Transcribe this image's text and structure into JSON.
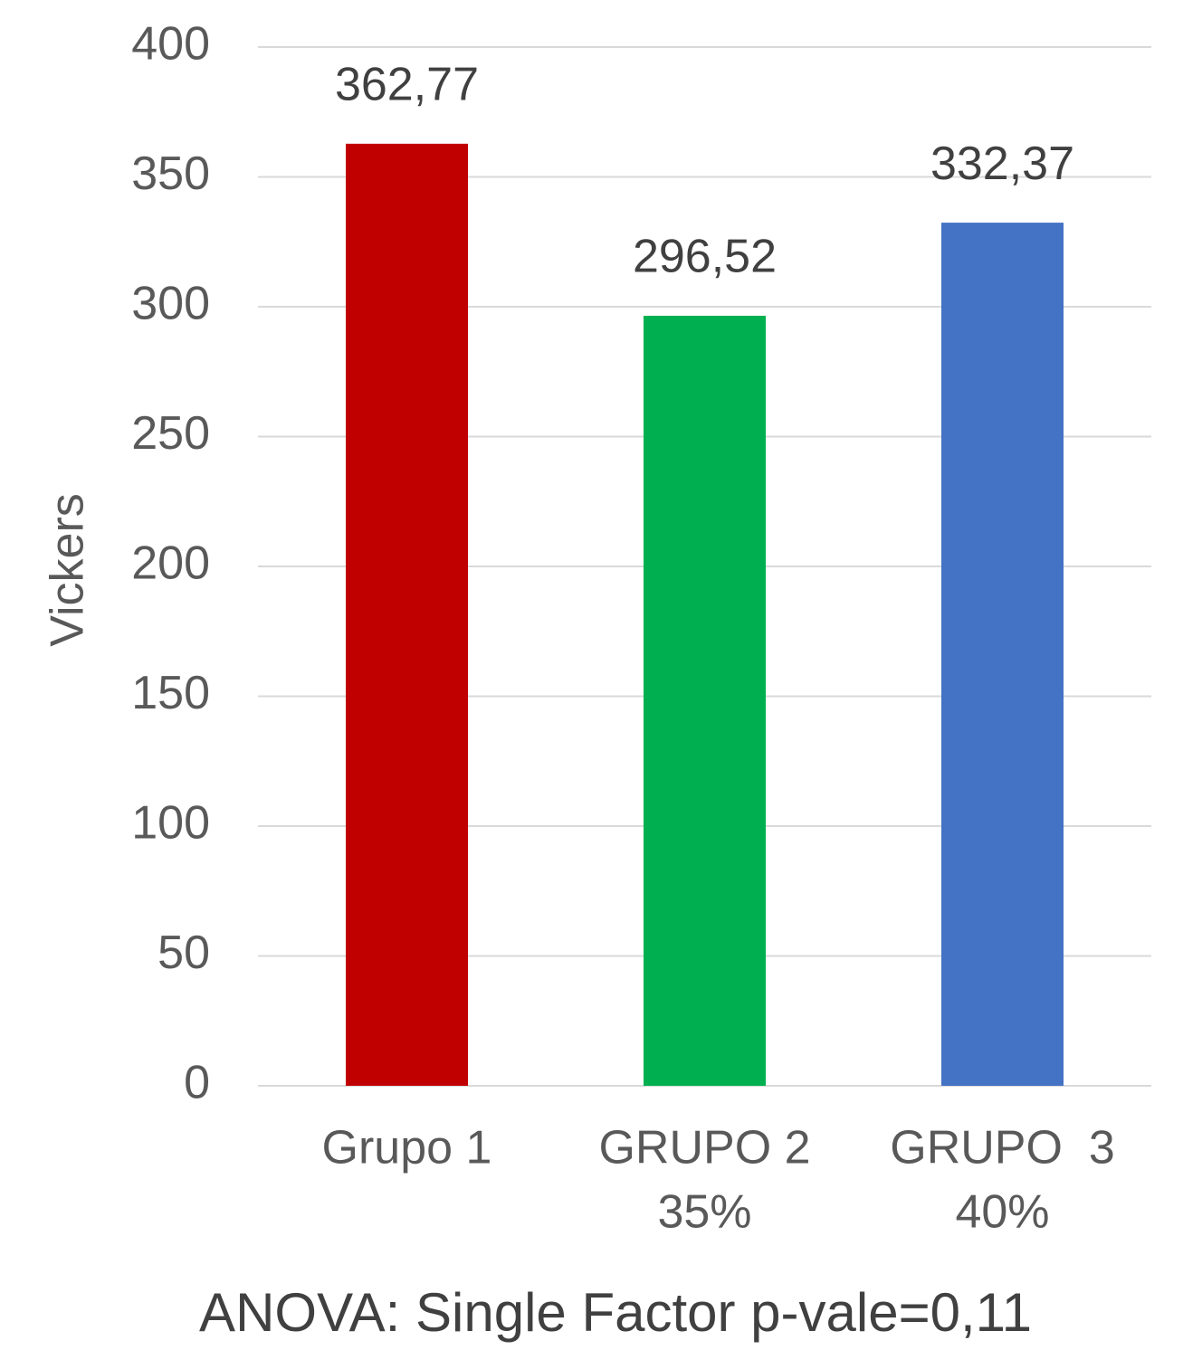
{
  "chart_data": {
    "type": "bar",
    "categories": [
      [
        "Grupo 1"
      ],
      [
        "GRUPO 2",
        "35%"
      ],
      [
        "GRUPO  3",
        "40%"
      ]
    ],
    "values": [
      362.77,
      296.52,
      332.37
    ],
    "value_labels": [
      "362,77",
      "296,52",
      "332,37"
    ],
    "colors": [
      "#c00000",
      "#00b050",
      "#4472c4"
    ],
    "y_label": "Vickers",
    "annotation": "ANOVA: Single Factor p-vale=0,11",
    "ylim": [
      0,
      400
    ],
    "yticks": [
      0,
      50,
      100,
      150,
      200,
      250,
      300,
      350,
      400
    ],
    "grid": true
  }
}
